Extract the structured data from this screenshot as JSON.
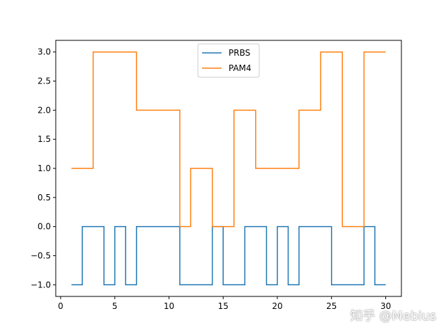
{
  "chart_data": {
    "type": "line",
    "drawstyle": "steps-post",
    "x": [
      1,
      2,
      3,
      4,
      5,
      6,
      7,
      8,
      9,
      10,
      11,
      12,
      13,
      14,
      15,
      16,
      17,
      18,
      19,
      20,
      21,
      22,
      23,
      24,
      25,
      26,
      27,
      28,
      29,
      30
    ],
    "series": [
      {
        "name": "PRBS",
        "color": "#1f77b4",
        "values": [
          -1,
          0,
          0,
          -1,
          0,
          -1,
          0,
          0,
          0,
          0,
          -1,
          -1,
          -1,
          0,
          -1,
          -1,
          0,
          0,
          -1,
          0,
          -1,
          0,
          0,
          0,
          -1,
          -1,
          -1,
          0,
          -1,
          -1
        ]
      },
      {
        "name": "PAM4",
        "color": "#ff7f0e",
        "values": [
          1,
          1,
          3,
          3,
          3,
          3,
          2,
          2,
          2,
          2,
          0,
          1,
          1,
          0,
          0,
          2,
          2,
          1,
          1,
          1,
          1,
          2,
          2,
          3,
          3,
          0,
          0,
          3,
          3,
          3
        ]
      }
    ],
    "xticks": [
      "0",
      "5",
      "10",
      "15",
      "20",
      "25",
      "30"
    ],
    "yticks": [
      "−1.0",
      "−0.5",
      "0.0",
      "0.5",
      "1.0",
      "1.5",
      "2.0",
      "2.5",
      "3.0"
    ],
    "xlim": [
      -0.45,
      31.45
    ],
    "ylim": [
      -1.2,
      3.2
    ],
    "grid": false,
    "legend_position": "top-center"
  },
  "watermark": "知乎 @Mebius"
}
